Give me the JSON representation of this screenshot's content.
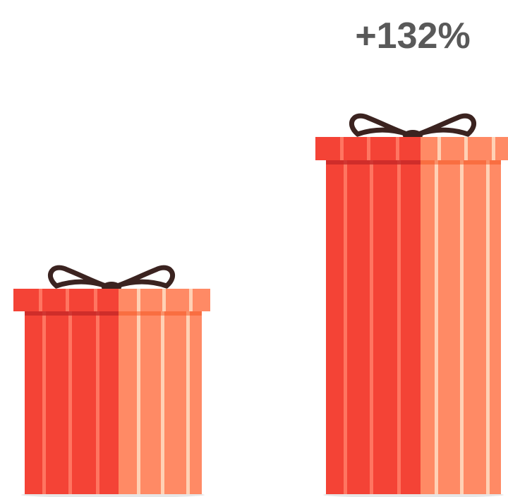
{
  "label": "+132%"
}
